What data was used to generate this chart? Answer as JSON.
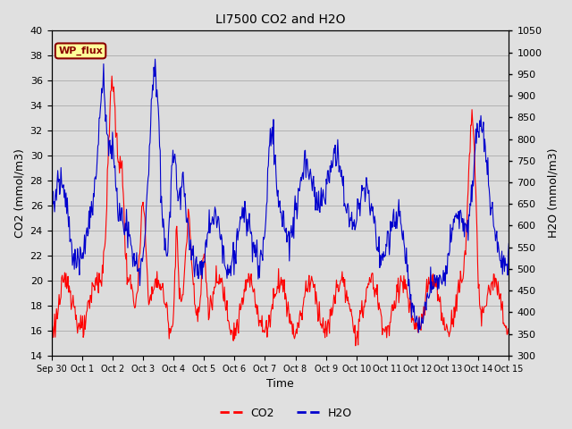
{
  "title": "LI7500 CO2 and H2O",
  "xlabel": "Time",
  "ylabel_left": "CO2 (mmol/m3)",
  "ylabel_right": "H2O (mmol/m3)",
  "co2_color": "#FF0000",
  "h2o_color": "#0000CD",
  "ylim_left": [
    14,
    40
  ],
  "ylim_right": [
    300,
    1050
  ],
  "yticks_left": [
    14,
    16,
    18,
    20,
    22,
    24,
    26,
    28,
    30,
    32,
    34,
    36,
    38,
    40
  ],
  "yticks_right": [
    300,
    350,
    400,
    450,
    500,
    550,
    600,
    650,
    700,
    750,
    800,
    850,
    900,
    950,
    1000,
    1050
  ],
  "background_color": "#E0E0E0",
  "plot_bg_color": "#DCDCDC",
  "annotation_text": "WP_flux",
  "annotation_color": "#8B0000",
  "annotation_bg": "#FFFF99",
  "n_days": 16,
  "seed": 123,
  "tick_labels": [
    "Sep 30",
    "Oct 1",
    "Oct 2",
    "Oct 3",
    "Oct 4",
    "Oct 5",
    "Oct 6",
    "Oct 7",
    "Oct 8",
    "Oct 9",
    "Oct 10",
    "Oct 11",
    "Oct 12",
    "Oct 13",
    "Oct 14",
    "Oct 15"
  ],
  "figsize": [
    6.4,
    4.8
  ],
  "dpi": 100
}
